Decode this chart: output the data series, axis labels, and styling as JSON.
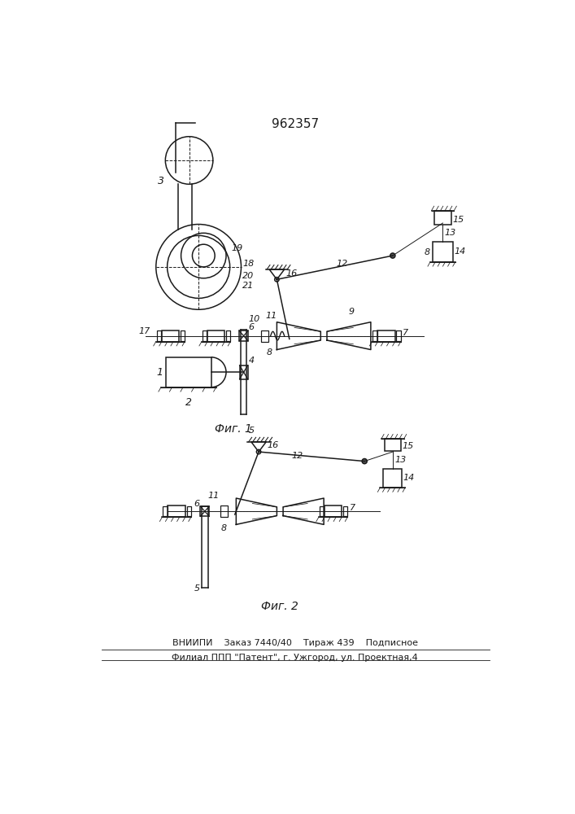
{
  "title": "962357",
  "bg_color": "#ffffff",
  "line_color": "#1a1a1a",
  "fig1_caption": "Фиг. 1",
  "fig2_caption": "Фиг. 2",
  "footer_line1": "ВНИИПИ    Заказ 7440/40    Тираж 439    Подписное",
  "footer_line2": "Филиал ППП \"Патент\", г. Ужгород, ул. Проектная,4"
}
